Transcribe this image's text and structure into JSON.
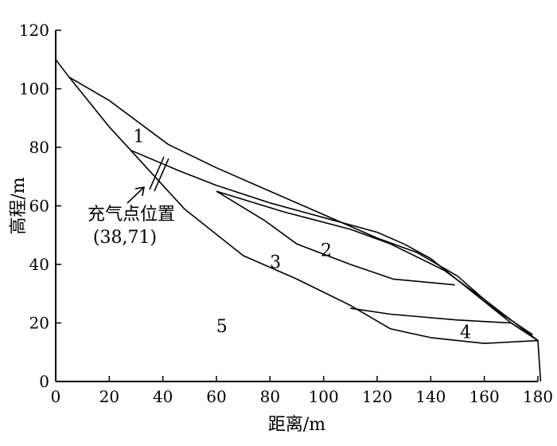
{
  "chart_data": {
    "type": "line",
    "xlabel": "距离/m",
    "ylabel": "高程/m",
    "xlim": [
      0,
      180
    ],
    "ylim": [
      0,
      120
    ],
    "x_ticks": [
      "0",
      "20",
      "40",
      "60",
      "80",
      "100",
      "120",
      "140",
      "160",
      "180"
    ],
    "y_ticks": [
      "0",
      "20",
      "40",
      "60",
      "80",
      "100",
      "120"
    ],
    "grid": false,
    "polylines": [
      {
        "id": "slope-surface",
        "points": [
          [
            0,
            110
          ],
          [
            5,
            104
          ],
          [
            20,
            87
          ],
          [
            28,
            79
          ],
          [
            35,
            72
          ],
          [
            40,
            67
          ],
          [
            48,
            59
          ],
          [
            70,
            43
          ],
          [
            90,
            35
          ],
          [
            110,
            26
          ],
          [
            125,
            18
          ],
          [
            140,
            15
          ],
          [
            160,
            13
          ],
          [
            180,
            14
          ],
          [
            181,
            0
          ]
        ]
      },
      {
        "id": "top-boundary",
        "points": [
          [
            5,
            104
          ],
          [
            20,
            96
          ],
          [
            42,
            81
          ],
          [
            60,
            73
          ],
          [
            80,
            65
          ],
          [
            100,
            57
          ],
          [
            120,
            49
          ],
          [
            135,
            44
          ],
          [
            150,
            36
          ],
          [
            165,
            24
          ],
          [
            178,
            16
          ]
        ]
      },
      {
        "id": "slip-surface-1",
        "points": [
          [
            28,
            79
          ],
          [
            46,
            72
          ],
          [
            60,
            67
          ],
          [
            80,
            61
          ],
          [
            100,
            56
          ],
          [
            120,
            51
          ],
          [
            130,
            47
          ],
          [
            140,
            42
          ],
          [
            155,
            31
          ],
          [
            170,
            20
          ],
          [
            180,
            14
          ]
        ]
      },
      {
        "id": "slip-surface-2",
        "points": [
          [
            60,
            65
          ],
          [
            85,
            58
          ],
          [
            110,
            52
          ],
          [
            125,
            47
          ],
          [
            145,
            38
          ],
          [
            160,
            28
          ],
          [
            170,
            21
          ],
          [
            180,
            14
          ]
        ]
      },
      {
        "id": "slip-surface-3",
        "points": [
          [
            60,
            65
          ],
          [
            78,
            55
          ],
          [
            90,
            47
          ],
          [
            110,
            40
          ],
          [
            126,
            35
          ],
          [
            149,
            33
          ]
        ]
      },
      {
        "id": "slip-surface-4",
        "points": [
          [
            110,
            25
          ],
          [
            125,
            23
          ],
          [
            150,
            21
          ],
          [
            170,
            20
          ],
          [
            180,
            14
          ]
        ]
      }
    ],
    "region_labels": [
      {
        "text": "1",
        "x": 31,
        "y": 84
      },
      {
        "text": "2",
        "x": 101,
        "y": 45
      },
      {
        "text": "3",
        "x": 82,
        "y": 41
      },
      {
        "text": "4",
        "x": 153,
        "y": 17
      },
      {
        "text": "5",
        "x": 62,
        "y": 19
      }
    ],
    "annotation": {
      "lines": [
        "充气点位置",
        "(38,71)"
      ],
      "point": [
        38,
        71
      ]
    }
  }
}
